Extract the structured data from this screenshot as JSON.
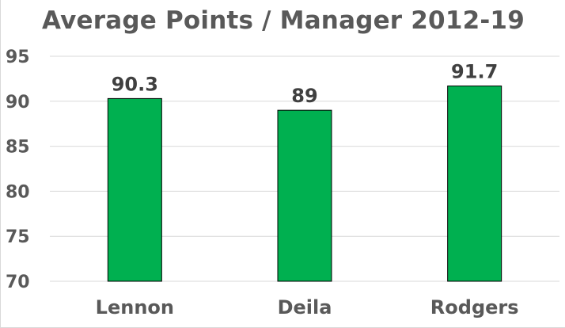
{
  "chart_data": {
    "type": "bar",
    "title": "Average Points / Manager 2012-19",
    "xlabel": "",
    "ylabel": "",
    "categories": [
      "Lennon",
      "Deila",
      "Rodgers"
    ],
    "values": [
      90.3,
      89,
      91.7
    ],
    "data_labels": [
      "90.3",
      "89",
      "91.7"
    ],
    "ylim": [
      70,
      95
    ],
    "yticks": [
      70,
      75,
      80,
      85,
      90,
      95
    ],
    "ytick_labels": [
      "70",
      "75",
      "80",
      "85",
      "90",
      "95"
    ],
    "grid": true,
    "legend": "none",
    "colors": {
      "bar_fill": "#00b050",
      "bar_stroke": "#000000",
      "gridline": "#d9d9d9",
      "text": "#595959"
    }
  }
}
